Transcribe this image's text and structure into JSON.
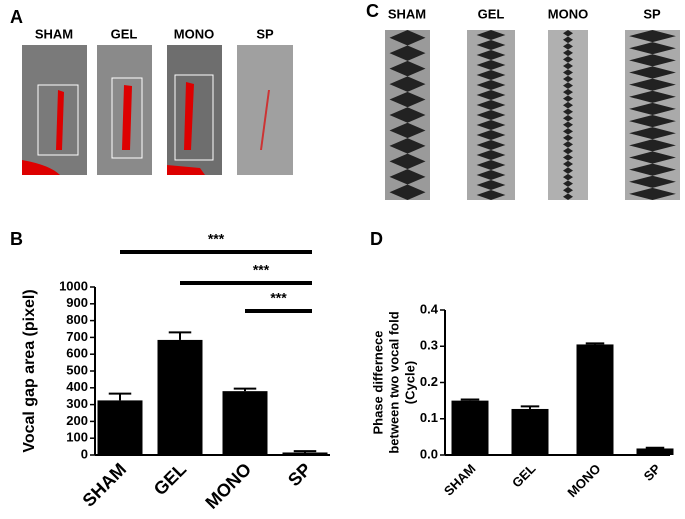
{
  "panel_a": {
    "label": "A",
    "images": [
      "SHAM",
      "GEL",
      "MONO",
      "SP"
    ]
  },
  "panel_c": {
    "label": "C",
    "images": [
      "SHAM",
      "GEL",
      "MONO",
      "SP"
    ]
  },
  "chart_data": [
    {
      "type": "bar",
      "panel_label": "B",
      "ylabel": [
        "Vocal gap area (pixel)"
      ],
      "categories": [
        "SHAM",
        "GEL",
        "MONO",
        "SP"
      ],
      "values": [
        325,
        685,
        380,
        15
      ],
      "errors": [
        40,
        45,
        15,
        8
      ],
      "color": "#000000",
      "ylim": [
        0,
        1000
      ],
      "yticks": [
        0,
        100,
        200,
        300,
        400,
        500,
        600,
        700,
        800,
        900,
        1000
      ],
      "annotations": [
        {
          "text": "***",
          "from": "SHAM",
          "to": "SP"
        },
        {
          "text": "***",
          "from": "GEL",
          "to": "SP"
        },
        {
          "text": "***",
          "from": "MONO",
          "to": "SP"
        }
      ]
    },
    {
      "type": "bar",
      "panel_label": "D",
      "ylabel": [
        "Phase differnece",
        "between two vocal fold",
        "(Cycle)"
      ],
      "categories": [
        "SHAM",
        "GEL",
        "MONO",
        "SP"
      ],
      "values": [
        0.15,
        0.127,
        0.305,
        0.018
      ],
      "errors": [
        0.003,
        0.007,
        0.003,
        0.002
      ],
      "color": "#000000",
      "ylim": [
        0,
        0.4
      ],
      "yticks": [
        {
          "value": 0,
          "label": "0.0"
        },
        0.1,
        0.2,
        0.3,
        0.4
      ]
    }
  ]
}
